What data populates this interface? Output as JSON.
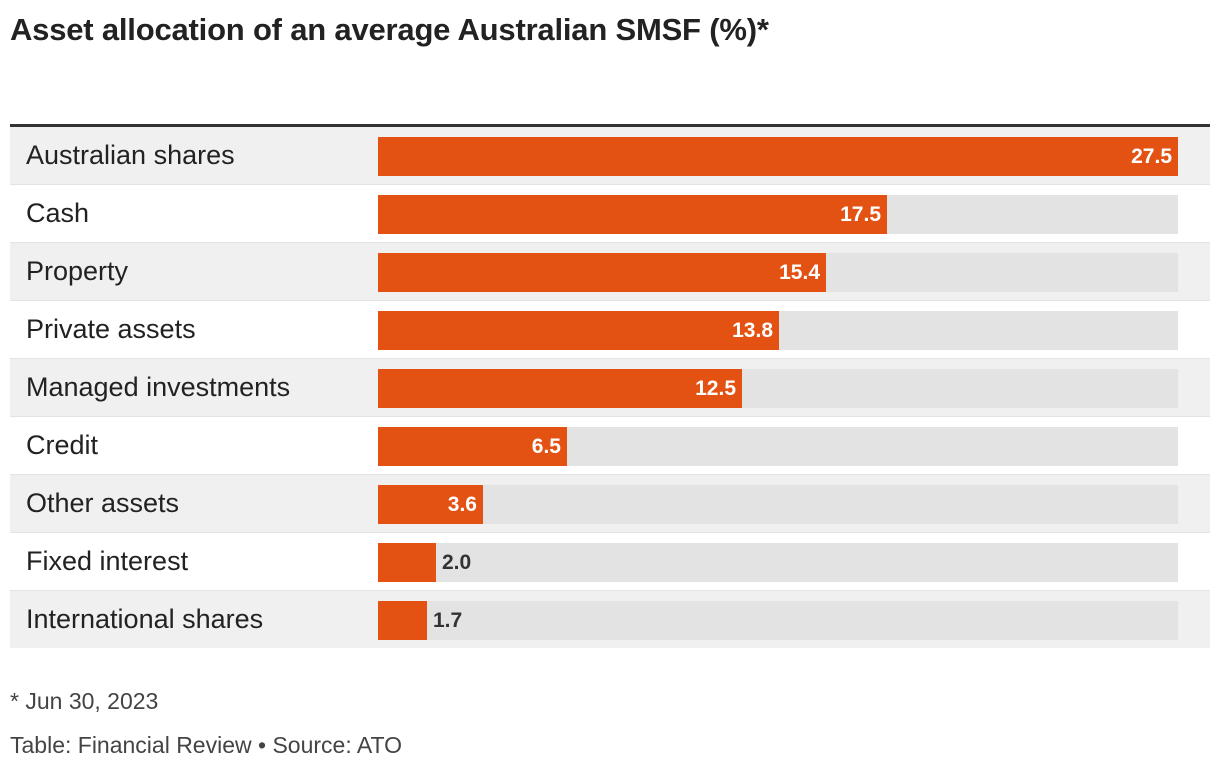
{
  "chart_data": {
    "type": "bar",
    "orientation": "horizontal",
    "title": "Asset allocation of an average Australian SMSF (%)*",
    "categories": [
      "Australian shares",
      "Cash",
      "Property",
      "Private assets",
      "Managed investments",
      "Credit",
      "Other assets",
      "Fixed interest",
      "International shares"
    ],
    "values": [
      27.5,
      17.5,
      15.4,
      13.8,
      12.5,
      6.5,
      3.6,
      2.0,
      1.7
    ],
    "value_labels": [
      "27.5",
      "17.5",
      "15.4",
      "13.8",
      "12.5",
      "6.5",
      "3.6",
      "2.0",
      "1.7"
    ],
    "xlim": [
      0,
      27.5
    ],
    "grid": false,
    "legend": "none",
    "colors": {
      "bar": "#e35212",
      "track": "#e3e3e3",
      "row_shade": "#f0f0f0"
    }
  },
  "footnote": "* Jun 30, 2023",
  "source": "Table: Financial Review • Source: ATO"
}
